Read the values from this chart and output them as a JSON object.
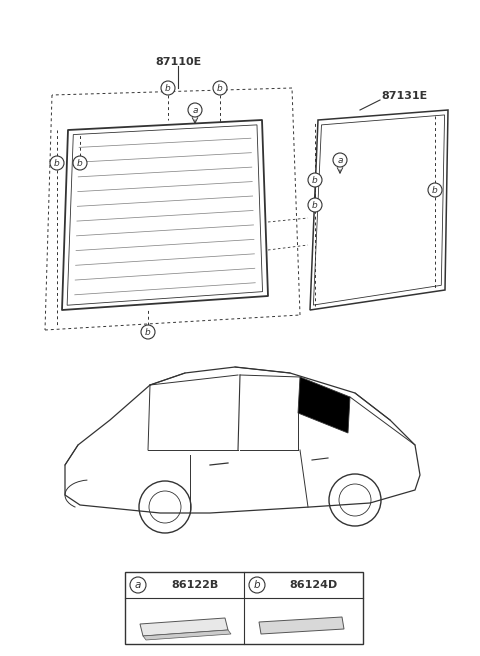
{
  "bg_color": "#ffffff",
  "label_87110E": "87110E",
  "label_87131E": "87131E",
  "label_a": "a",
  "label_b": "b",
  "part_a_code": "86122B",
  "part_b_code": "86124D",
  "line_color": "#333333",
  "gray_color": "#888888",
  "dark_color": "#222222"
}
